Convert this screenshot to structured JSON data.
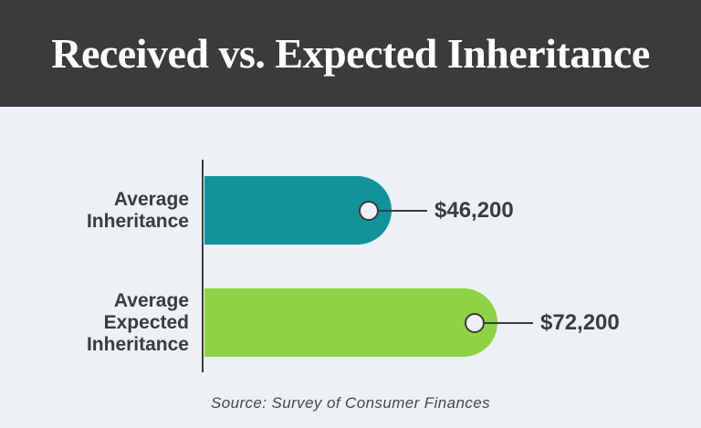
{
  "header": {
    "title": "Received vs. Expected Inheritance"
  },
  "footer": {
    "source": "Source: Survey of Consumer Finances"
  },
  "colors": {
    "header_bg": "#3B3B3B",
    "body_bg": "#ECF1F6",
    "title_text": "#FFFFFF",
    "text_dark": "#3B3B3B",
    "axis_line": "#3C3C3C",
    "source_text": "#474750"
  },
  "chart_data": {
    "type": "bar",
    "orientation": "horizontal",
    "title": "Received vs. Expected Inheritance",
    "categories": [
      "Average\nInheritance",
      "Average\nExpected\nInheritance"
    ],
    "values": [
      46200,
      72200
    ],
    "value_labels": [
      "$46,200",
      "$72,200"
    ],
    "bar_colors": [
      "#11939B",
      "#8DD344"
    ],
    "xlim": [
      0,
      72200
    ],
    "grid": false,
    "legend": false,
    "marker": "circle-outline",
    "source": "Source: Survey of Consumer Finances"
  }
}
